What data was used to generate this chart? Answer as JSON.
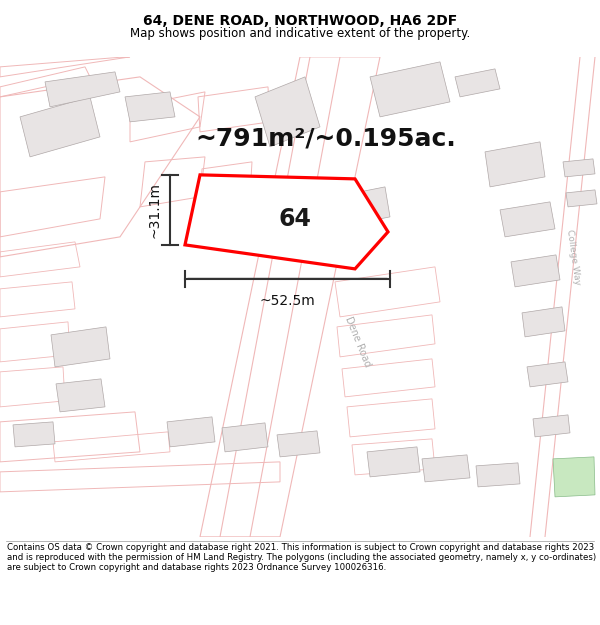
{
  "title": "64, DENE ROAD, NORTHWOOD, HA6 2DF",
  "subtitle": "Map shows position and indicative extent of the property.",
  "footer": "Contains OS data © Crown copyright and database right 2021. This information is subject to Crown copyright and database rights 2023 and is reproduced with the permission of HM Land Registry. The polygons (including the associated geometry, namely x, y co-ordinates) are subject to Crown copyright and database rights 2023 Ordnance Survey 100026316.",
  "area_label": "~791m²/~0.195ac.",
  "width_label": "~52.5m",
  "height_label": "~31.1m",
  "house_number": "64",
  "map_bg": "#ffffff",
  "plot_color": "#ff0000",
  "building_fill": "#e8e4e4",
  "building_stroke": "#b0a8a8",
  "road_outline": "#f0b8b8",
  "dim_color": "#333333",
  "label_color": "#111111",
  "road_label_color": "#aaaaaa",
  "green_fill": "#c8e8c0"
}
